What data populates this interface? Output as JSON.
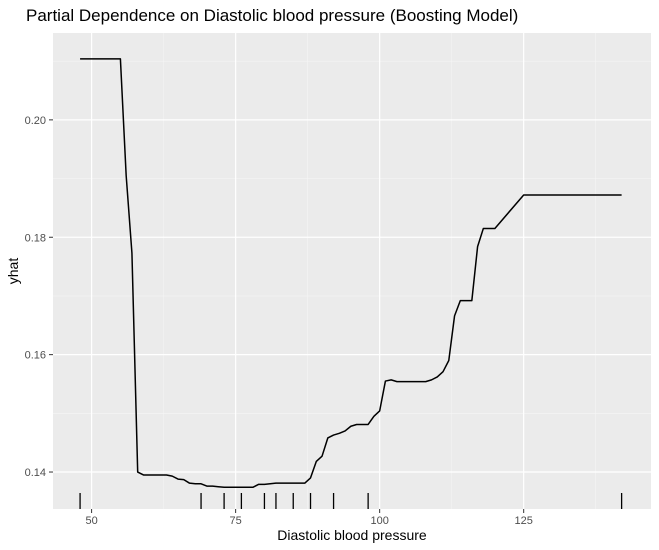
{
  "chart_data": {
    "type": "line",
    "title": "Partial Dependence on Diastolic blood pressure  (Boosting Model)",
    "xlabel": "Diastolic blood pressure",
    "ylabel": "yhat",
    "xlim": [
      43.3,
      147.1
    ],
    "ylim": [
      0.1337,
      0.2148
    ],
    "x_ticks": [
      50,
      75,
      100,
      125
    ],
    "x_tick_labels": [
      "50",
      "75",
      "100",
      "125"
    ],
    "y_ticks": [
      0.14,
      0.16,
      0.18,
      0.2
    ],
    "y_tick_labels": [
      "0.14",
      "0.16",
      "0.18",
      "0.20"
    ],
    "grid": true,
    "legend": "none",
    "rug_x": [
      48,
      69,
      73,
      76,
      80,
      82,
      85,
      88,
      92,
      98,
      142
    ],
    "series": [
      {
        "color": "#000000",
        "x": [
          48,
          52,
          55,
          56,
          57,
          58,
          59,
          60,
          62,
          63,
          64,
          65,
          66,
          67,
          68,
          69,
          70,
          71,
          72,
          73,
          74,
          75,
          76,
          77,
          78,
          79,
          80,
          81,
          82,
          83,
          84,
          85,
          86,
          87,
          88,
          89,
          90,
          91,
          92,
          93,
          94,
          95,
          96,
          97,
          98,
          99,
          100,
          101,
          102,
          103,
          104,
          105,
          106,
          107,
          108,
          109,
          110,
          111,
          112,
          113,
          114,
          115,
          116,
          117,
          118,
          119,
          120,
          125,
          130,
          135,
          140,
          142
        ],
        "y": [
          0.2104,
          0.2104,
          0.2104,
          0.1905,
          0.1773,
          0.14,
          0.1395,
          0.1395,
          0.1395,
          0.1395,
          0.1393,
          0.1388,
          0.1387,
          0.1381,
          0.138,
          0.138,
          0.1376,
          0.1376,
          0.1375,
          0.1374,
          0.1374,
          0.1374,
          0.1374,
          0.1374,
          0.1374,
          0.1379,
          0.1379,
          0.138,
          0.1381,
          0.1381,
          0.1381,
          0.1381,
          0.1381,
          0.1381,
          0.139,
          0.1418,
          0.1427,
          0.1458,
          0.1463,
          0.1466,
          0.147,
          0.1478,
          0.1481,
          0.1481,
          0.1481,
          0.1495,
          0.1504,
          0.1555,
          0.1557,
          0.1554,
          0.1554,
          0.1554,
          0.1554,
          0.1554,
          0.1554,
          0.1557,
          0.1562,
          0.1571,
          0.159,
          0.1666,
          0.1692,
          0.1692,
          0.1692,
          0.1784,
          0.1815,
          0.1815,
          0.1815,
          0.1872,
          0.1872,
          0.1872,
          0.1872,
          0.1872
        ]
      }
    ]
  }
}
